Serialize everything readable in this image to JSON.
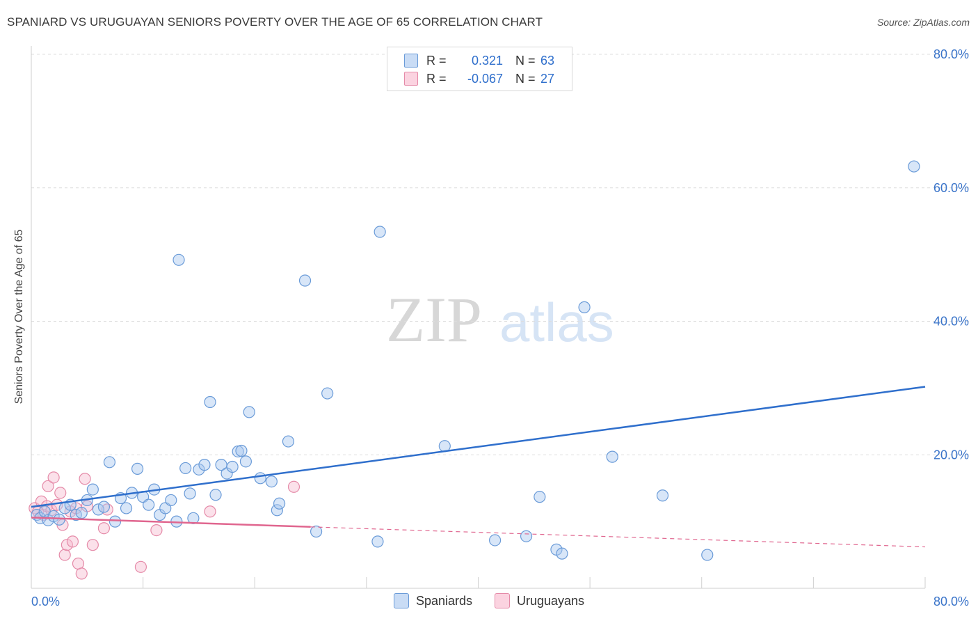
{
  "header": {
    "title": "SPANIARD VS URUGUAYAN SENIORS POVERTY OVER THE AGE OF 65 CORRELATION CHART",
    "source": "Source: ZipAtlas.com"
  },
  "watermark": {
    "part1": "ZIP",
    "part2": "atlas"
  },
  "legend": {
    "rows": [
      {
        "r_label": "R =",
        "r_value": "0.321",
        "n_label": "N =",
        "n_value": "63",
        "color": "#a9c8f0"
      },
      {
        "r_label": "R =",
        "r_value": "-0.067",
        "n_label": "N =",
        "n_value": "27",
        "color": "#f7bdd0"
      }
    ]
  },
  "bottom_legend": {
    "series1": "Spaniards",
    "series2": "Uruguayans"
  },
  "colors": {
    "blue_fill": "#a9c8f0",
    "blue_stroke": "#6a9bd8",
    "blue_line": "#2f6fcc",
    "pink_fill": "#f7bdd0",
    "pink_stroke": "#e58aa8",
    "pink_line": "#e0668f",
    "tick_label": "#3a74c9",
    "grid": "#dddddd"
  },
  "chart_data": {
    "type": "scatter",
    "title": "SPANIARD VS URUGUAYAN SENIORS POVERTY OVER THE AGE OF 65 CORRELATION CHART",
    "xlabel": "",
    "ylabel": "Seniors Poverty Over the Age of 65",
    "xlim": [
      0,
      80
    ],
    "ylim": [
      0,
      80
    ],
    "x_tick_labels": [
      "0.0%",
      "80.0%"
    ],
    "y_ticks": [
      20,
      40,
      60,
      80
    ],
    "y_tick_labels": [
      "20.0%",
      "40.0%",
      "60.0%",
      "80.0%"
    ],
    "series": [
      {
        "name": "Spaniards",
        "trend": {
          "x": [
            0,
            80
          ],
          "y": [
            12.2,
            30.2
          ]
        },
        "points": [
          [
            0.5,
            11.0
          ],
          [
            0.8,
            10.5
          ],
          [
            1.2,
            11.5
          ],
          [
            1.5,
            10.2
          ],
          [
            2.0,
            10.8
          ],
          [
            2.5,
            10.3
          ],
          [
            3.0,
            12.0
          ],
          [
            3.5,
            12.5
          ],
          [
            4.0,
            11.0
          ],
          [
            4.5,
            11.3
          ],
          [
            5.0,
            13.2
          ],
          [
            5.5,
            14.8
          ],
          [
            6.0,
            11.8
          ],
          [
            6.5,
            12.2
          ],
          [
            7.0,
            18.9
          ],
          [
            7.5,
            10.0
          ],
          [
            8.0,
            13.5
          ],
          [
            8.5,
            12.0
          ],
          [
            9.0,
            14.3
          ],
          [
            9.5,
            17.9
          ],
          [
            10.0,
            13.7
          ],
          [
            10.5,
            12.5
          ],
          [
            11.0,
            14.8
          ],
          [
            11.5,
            11.0
          ],
          [
            12.0,
            12.0
          ],
          [
            12.5,
            13.2
          ],
          [
            13.0,
            10.0
          ],
          [
            13.2,
            49.2
          ],
          [
            13.8,
            18.0
          ],
          [
            14.2,
            14.2
          ],
          [
            14.5,
            10.5
          ],
          [
            15.0,
            17.8
          ],
          [
            15.5,
            18.5
          ],
          [
            16.0,
            27.9
          ],
          [
            16.5,
            14.0
          ],
          [
            17.0,
            18.5
          ],
          [
            17.5,
            17.2
          ],
          [
            18.0,
            18.2
          ],
          [
            18.5,
            20.5
          ],
          [
            18.8,
            20.6
          ],
          [
            19.2,
            19.0
          ],
          [
            19.5,
            26.4
          ],
          [
            20.5,
            16.5
          ],
          [
            21.5,
            16.0
          ],
          [
            22.0,
            11.7
          ],
          [
            22.2,
            12.7
          ],
          [
            23.0,
            22.0
          ],
          [
            24.5,
            46.1
          ],
          [
            25.5,
            8.5
          ],
          [
            26.5,
            29.2
          ],
          [
            31.2,
            53.4
          ],
          [
            31.0,
            7.0
          ],
          [
            37.0,
            21.3
          ],
          [
            41.5,
            7.2
          ],
          [
            44.3,
            7.8
          ],
          [
            45.5,
            13.7
          ],
          [
            47.0,
            5.8
          ],
          [
            49.5,
            42.1
          ],
          [
            47.5,
            5.2
          ],
          [
            52.0,
            19.7
          ],
          [
            56.5,
            13.9
          ],
          [
            60.5,
            5.0
          ],
          [
            79.0,
            63.2
          ]
        ]
      },
      {
        "name": "Uruguayans",
        "trend_solid": {
          "x": [
            0,
            25
          ],
          "y": [
            10.6,
            9.2
          ]
        },
        "trend_dashed": {
          "x": [
            25,
            80
          ],
          "y": [
            9.2,
            6.2
          ]
        },
        "points": [
          [
            0.3,
            12.0
          ],
          [
            0.6,
            11.5
          ],
          [
            0.9,
            13.0
          ],
          [
            1.1,
            11.0
          ],
          [
            1.4,
            12.3
          ],
          [
            1.5,
            15.3
          ],
          [
            1.8,
            11.7
          ],
          [
            2.0,
            16.6
          ],
          [
            2.3,
            12.5
          ],
          [
            2.6,
            14.3
          ],
          [
            2.8,
            9.5
          ],
          [
            3.0,
            5.0
          ],
          [
            3.2,
            6.5
          ],
          [
            3.5,
            11.5
          ],
          [
            3.7,
            7.0
          ],
          [
            4.0,
            12.0
          ],
          [
            4.2,
            3.7
          ],
          [
            4.5,
            2.2
          ],
          [
            4.8,
            16.4
          ],
          [
            5.0,
            12.3
          ],
          [
            5.5,
            6.5
          ],
          [
            6.5,
            9.0
          ],
          [
            6.8,
            11.8
          ],
          [
            9.8,
            3.2
          ],
          [
            11.2,
            8.7
          ],
          [
            16.0,
            11.5
          ],
          [
            23.5,
            15.2
          ]
        ]
      }
    ]
  }
}
